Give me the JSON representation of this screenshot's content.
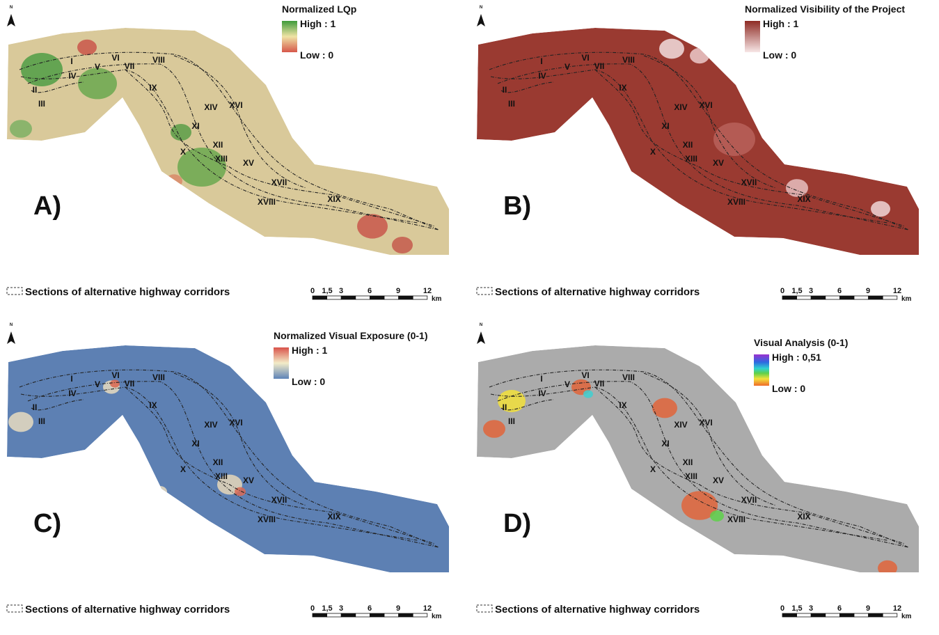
{
  "north": "N",
  "sections": [
    "I",
    "II",
    "III",
    "IV",
    "V",
    "VI",
    "VII",
    "VIII",
    "IX",
    "X",
    "XI",
    "XII",
    "XIII",
    "XIV",
    "XV",
    "XVI",
    "XVII",
    "XVIII",
    "XIX"
  ],
  "footer": "Sections of alternative highway corridors",
  "scale_bar": {
    "ticks": [
      "0",
      "1,5",
      "3",
      "6",
      "9",
      "12"
    ],
    "unit": "km"
  },
  "panels": [
    {
      "label": "A)",
      "legend": {
        "title": "Normalized LQp",
        "high": "High : 1",
        "low": "Low : 0"
      }
    },
    {
      "label": "B)",
      "legend": {
        "title": "Normalized Visibility of the Project",
        "high": "High : 1",
        "low": "Low : 0"
      }
    },
    {
      "label": "C)",
      "legend": {
        "title": "Normalized Visual Exposure (0-1)",
        "high": "High : 1",
        "low": "Low : 0"
      }
    },
    {
      "label": "D)",
      "legend": {
        "title": "Visual Analysis (0-1)",
        "high": "High : 0,51",
        "low": "Low : 0"
      }
    }
  ]
}
